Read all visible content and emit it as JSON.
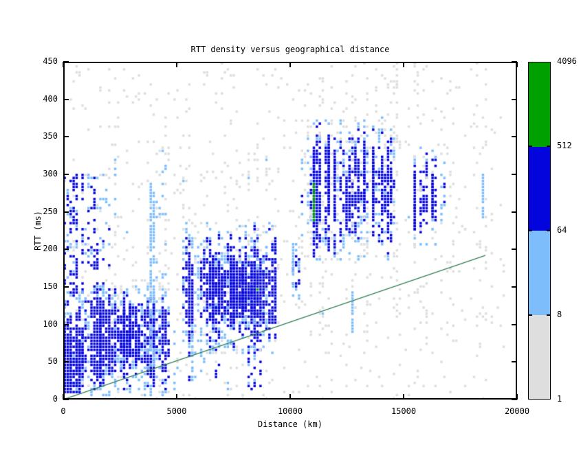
{
  "chart_data": {
    "type": "heatmap",
    "title": "RTT density versus geographical distance",
    "xlabel": "Distance (km)",
    "ylabel": "RTT (ms)",
    "xlim": [
      0,
      20000
    ],
    "ylim": [
      0,
      450
    ],
    "x_ticks": [
      0,
      5000,
      10000,
      15000,
      20000
    ],
    "y_ticks": [
      0,
      50,
      100,
      150,
      200,
      250,
      300,
      350,
      400,
      450
    ],
    "grid": {
      "n_cols": 153,
      "n_rows": 112
    },
    "legend_position": "right-colorbar",
    "color_scale": {
      "levels": [
        1,
        8,
        64,
        512,
        4096
      ],
      "level_labels_top_to_bottom": [
        "4096",
        "512",
        "64",
        "8",
        "1"
      ],
      "colors_bottom_to_top": [
        "#dedede",
        "#7dbdfb",
        "#0404dd",
        "#00a000"
      ],
      "color_names": [
        "gray: 1-8",
        "lightblue: 8-64",
        "blue: 64-512",
        "green: 512-4096"
      ]
    },
    "reference_line": {
      "x1_km": 0,
      "y1_ms": 0,
      "x2_km": 18600,
      "y2_ms": 192,
      "color": "#2d7d54"
    },
    "density_clusters": [
      {
        "name": "background-sparse",
        "x_km": [
          0,
          18700
        ],
        "rtt_ms": [
          2,
          448
        ],
        "col_prob": 0.8,
        "peak_density": 0.05,
        "profile": "flat",
        "blue_bias": 0.02,
        "green_chance": 0
      },
      {
        "name": "far-edge-sparse",
        "x_km": [
          18700,
          19800
        ],
        "rtt_ms": [
          60,
          380
        ],
        "col_prob": 0.35,
        "peak_density": 0.03,
        "profile": "flat",
        "blue_bias": 0.02,
        "green_chance": 0
      },
      {
        "name": "left-upper-cols",
        "x_km": [
          0,
          2100
        ],
        "rtt_ms": [
          130,
          300
        ],
        "col_prob": 0.8,
        "peak_density": 0.22,
        "profile": "flat",
        "blue_bias": 0.33,
        "green_chance": 0
      },
      {
        "name": "upper-left-sparse",
        "x_km": [
          2200,
          4500
        ],
        "rtt_ms": [
          130,
          340
        ],
        "col_prob": 0.6,
        "peak_density": 0.13,
        "profile": "flat",
        "blue_bias": 0.15,
        "green_chance": 0
      },
      {
        "name": "left-core",
        "x_km": [
          0,
          4600
        ],
        "rtt_ms": [
          5,
          150
        ],
        "col_prob": 0.97,
        "peak_density": 0.72,
        "profile": "gauss",
        "blue_bias": 0.7,
        "green_chance": 0
      },
      {
        "name": "left-origin-hot",
        "x_km": [
          0,
          650
        ],
        "rtt_ms": [
          8,
          75
        ],
        "col_prob": 1.0,
        "peak_density": 0.95,
        "profile": "flat",
        "blue_bias": 0.92,
        "green_chance": 0
      },
      {
        "name": "left-secondary",
        "x_km": [
          2300,
          4250
        ],
        "rtt_ms": [
          40,
          130
        ],
        "col_prob": 0.7,
        "peak_density": 0.5,
        "profile": "gauss",
        "blue_bias": 0.65,
        "green_chance": 0
      },
      {
        "name": "mid-low-sparse",
        "x_km": [
          4700,
          8700
        ],
        "rtt_ms": [
          12,
          95
        ],
        "col_prob": 0.55,
        "peak_density": 0.18,
        "profile": "flat",
        "blue_bias": 0.3,
        "green_chance": 0
      },
      {
        "name": "mid-core",
        "x_km": [
          5300,
          9300
        ],
        "rtt_ms": [
          60,
          235
        ],
        "col_prob": 0.95,
        "peak_density": 0.55,
        "profile": "gauss",
        "blue_bias": 0.55,
        "green_chance": 0.002
      },
      {
        "name": "mid-hot",
        "x_km": [
          6300,
          8800
        ],
        "rtt_ms": [
          98,
          188
        ],
        "col_prob": 0.92,
        "peak_density": 0.85,
        "profile": "gauss",
        "blue_bias": 0.93,
        "green_chance": 0.004
      },
      {
        "name": "mid-upper-halo",
        "x_km": [
          5300,
          8900
        ],
        "rtt_ms": [
          185,
          345
        ],
        "col_prob": 0.7,
        "peak_density": 0.13,
        "profile": "flat",
        "blue_bias": 0.1,
        "green_chance": 0
      },
      {
        "name": "gap-rising",
        "x_km": [
          9300,
          10450
        ],
        "rtt_ms": [
          115,
          215
        ],
        "col_prob": 0.55,
        "peak_density": 0.3,
        "profile": "gauss",
        "blue_bias": 0.45,
        "green_chance": 0
      },
      {
        "name": "right-core",
        "x_km": [
          10500,
          14600
        ],
        "rtt_ms": [
          185,
          378
        ],
        "col_prob": 0.92,
        "peak_density": 0.5,
        "profile": "gauss",
        "blue_bias": 0.55,
        "green_chance": 0.002
      },
      {
        "name": "right-halo",
        "x_km": [
          10200,
          14800
        ],
        "rtt_ms": [
          85,
          450
        ],
        "col_prob": 0.6,
        "peak_density": 0.09,
        "profile": "flat",
        "blue_bias": 0.07,
        "green_chance": 0
      },
      {
        "name": "far-right-cols",
        "x_km": [
          15200,
          16900
        ],
        "rtt_ms": [
          205,
          340
        ],
        "col_prob": 0.65,
        "peak_density": 0.4,
        "profile": "gauss",
        "blue_bias": 0.55,
        "green_chance": 0
      },
      {
        "name": "far-right-sparse",
        "x_km": [
          14800,
          19600
        ],
        "rtt_ms": [
          80,
          440
        ],
        "col_prob": 0.5,
        "peak_density": 0.055,
        "profile": "flat",
        "blue_bias": 0.05,
        "green_chance": 0
      }
    ],
    "column_stripes": [
      {
        "km": 800,
        "rtt_ms": [
          15,
          95
        ],
        "color": "blue",
        "density": 0.8
      },
      {
        "km": 1550,
        "rtt_ms": [
          18,
          112
        ],
        "color": "blue",
        "density": 0.8
      },
      {
        "km": 2600,
        "rtt_ms": [
          55,
          118
        ],
        "color": "blue",
        "density": 0.85
      },
      {
        "km": 2870,
        "rtt_ms": [
          58,
          122
        ],
        "color": "blue",
        "density": 0.8
      },
      {
        "km": 3750,
        "rtt_ms": [
          40,
          300
        ],
        "color": "lightblue",
        "density": 0.62
      },
      {
        "km": 3950,
        "rtt_ms": [
          45,
          275
        ],
        "color": "lightblue",
        "density": 0.62
      },
      {
        "km": 3900,
        "rtt_ms": [
          68,
          130
        ],
        "color": "blue",
        "density": 0.85
      },
      {
        "km": 5700,
        "rtt_ms": [
          25,
          85
        ],
        "color": "lightblue",
        "density": 0.55
      },
      {
        "km": 7600,
        "rtt_ms": [
          108,
          182
        ],
        "color": "blue",
        "density": 0.9
      },
      {
        "km": 7900,
        "rtt_ms": [
          112,
          178
        ],
        "color": "blue",
        "density": 0.85
      },
      {
        "km": 8300,
        "rtt_ms": [
          118,
          185
        ],
        "color": "blue",
        "density": 0.8
      },
      {
        "km": 10180,
        "rtt_ms": [
          148,
          208
        ],
        "color": "lightblue",
        "density": 0.7
      },
      {
        "km": 11000,
        "rtt_ms": [
          190,
          330
        ],
        "color": "blue",
        "density": 0.8
      },
      {
        "km": 11060,
        "rtt_ms": [
          238,
          287
        ],
        "color": "green",
        "density": 1.0
      },
      {
        "km": 11700,
        "rtt_ms": [
          252,
          352
        ],
        "color": "blue",
        "density": 0.85
      },
      {
        "km": 11920,
        "rtt_ms": [
          238,
          332
        ],
        "color": "blue",
        "density": 0.8
      },
      {
        "km": 12450,
        "rtt_ms": [
          228,
          302
        ],
        "color": "blue",
        "density": 0.8
      },
      {
        "km": 12700,
        "rtt_ms": [
          88,
          140
        ],
        "color": "lightblue",
        "density": 0.7
      },
      {
        "km": 13300,
        "rtt_ms": [
          252,
          345
        ],
        "color": "blue",
        "density": 0.85
      },
      {
        "km": 13620,
        "rtt_ms": [
          248,
          330
        ],
        "color": "blue",
        "density": 0.8
      },
      {
        "km": 14200,
        "rtt_ms": [
          252,
          302
        ],
        "color": "blue",
        "density": 0.75
      },
      {
        "km": 14450,
        "rtt_ms": [
          262,
          308
        ],
        "color": "blue",
        "density": 0.7
      },
      {
        "km": 15500,
        "rtt_ms": [
          228,
          305
        ],
        "color": "blue",
        "density": 0.8
      },
      {
        "km": 16300,
        "rtt_ms": [
          252,
          302
        ],
        "color": "blue",
        "density": 0.75
      },
      {
        "km": 18500,
        "rtt_ms": [
          242,
          298
        ],
        "color": "lightblue",
        "density": 0.8
      }
    ]
  }
}
